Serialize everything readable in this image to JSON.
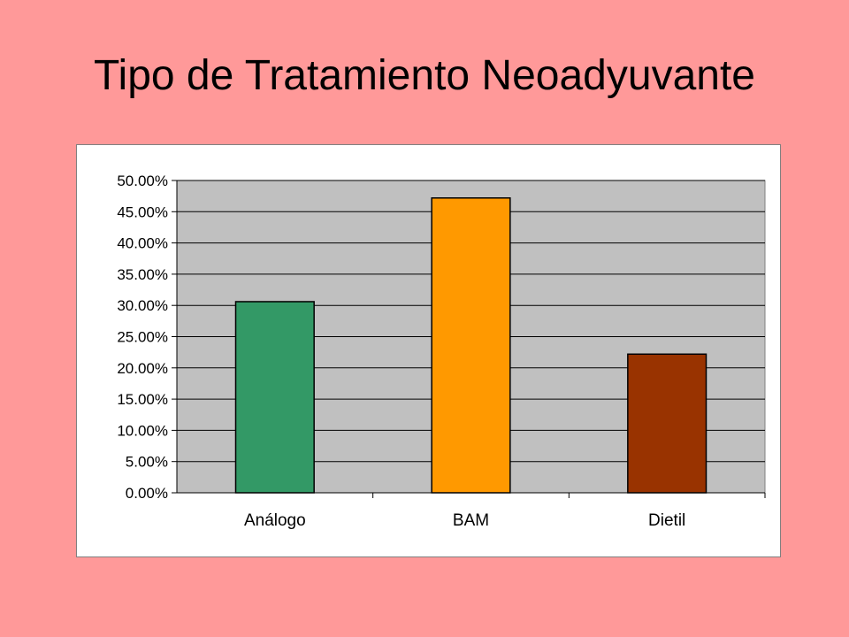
{
  "slide": {
    "title": "Tipo de Tratamiento Neoadyuvante",
    "background": "#FF9999"
  },
  "chart_data": {
    "type": "bar",
    "title": "",
    "xlabel": "",
    "ylabel": "",
    "categories": [
      "Análogo",
      "BAM",
      "Dietil"
    ],
    "values": [
      30.6,
      47.2,
      22.2
    ],
    "bar_colors": [
      "#339966",
      "#FF9900",
      "#993300"
    ],
    "plot_background": "#C0C0C0",
    "ylim": [
      0,
      50
    ],
    "ytick_step": 5,
    "ytick_labels": [
      "0.00%",
      "5.00%",
      "10.00%",
      "15.00%",
      "20.00%",
      "25.00%",
      "30.00%",
      "35.00%",
      "40.00%",
      "45.00%",
      "50.00%"
    ],
    "grid": true,
    "legend": "none"
  }
}
